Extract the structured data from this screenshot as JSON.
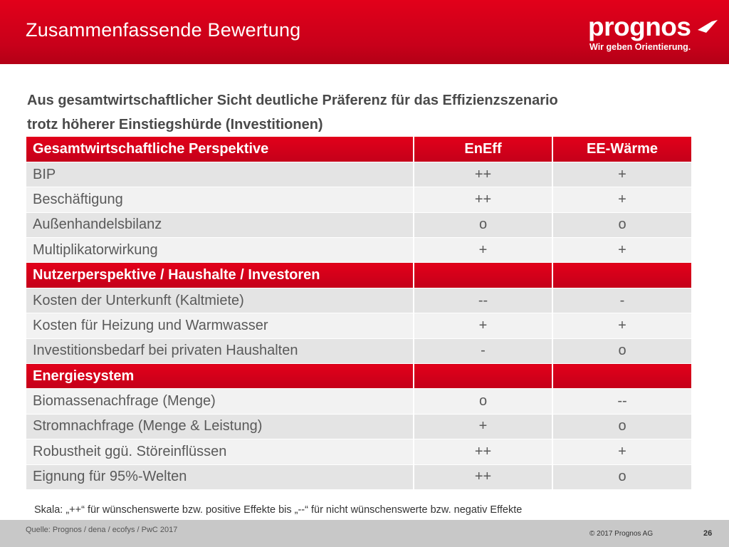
{
  "header": {
    "title": "Zusammenfassende Bewertung",
    "logo_text": "prognos",
    "logo_tagline": "Wir geben Orientierung.",
    "brand_color": "#e2001a"
  },
  "subtitle": {
    "line1": "Aus gesamtwirtschaftlicher Sicht deutliche Präferenz für das Effizienzszenario",
    "line2": "trotz höherer Einstiegshürde (Investitionen)"
  },
  "table": {
    "sections": [
      {
        "title": "Gesamtwirtschaftliche Perspektive",
        "col1": "EnEff",
        "col2": "EE-Wärme",
        "rows": [
          {
            "label": "BIP",
            "v1": "++",
            "v2": "+"
          },
          {
            "label": "Beschäftigung",
            "v1": "++",
            "v2": "+"
          },
          {
            "label": "Außenhandelsbilanz",
            "v1": "o",
            "v2": "o"
          },
          {
            "label": "Multiplikatorwirkung",
            "v1": "+",
            "v2": "+"
          }
        ]
      },
      {
        "title": "Nutzerperspektive / Haushalte / Investoren",
        "col1": "",
        "col2": "",
        "rows": [
          {
            "label": "Kosten der Unterkunft (Kaltmiete)",
            "v1": "--",
            "v2": "-"
          },
          {
            "label": "Kosten für Heizung und Warmwasser",
            "v1": "+",
            "v2": "+"
          },
          {
            "label": "Investitionsbedarf bei privaten Haushalten",
            "v1": "-",
            "v2": "o"
          }
        ]
      },
      {
        "title": "Energiesystem",
        "col1": "",
        "col2": "",
        "rows": [
          {
            "label": "Biomassenachfrage (Menge)",
            "v1": "o",
            "v2": "--"
          },
          {
            "label": "Stromnachfrage (Menge & Leistung)",
            "v1": "+",
            "v2": "o"
          },
          {
            "label": "Robustheit ggü. Störeinflüssen",
            "v1": "++",
            "v2": "+"
          },
          {
            "label": "Eignung für 95%-Welten",
            "v1": "++",
            "v2": "o"
          }
        ]
      }
    ]
  },
  "footnote": "Skala: „++“ für wünschenswerte bzw. positive Effekte bis „--“ für nicht wünschenswerte bzw. negativ Effekte",
  "footer": {
    "source": "Quelle: Prognos / dena / ecofys / PwC 2017",
    "copyright": "© 2017 Prognos AG",
    "page_number": "26"
  }
}
